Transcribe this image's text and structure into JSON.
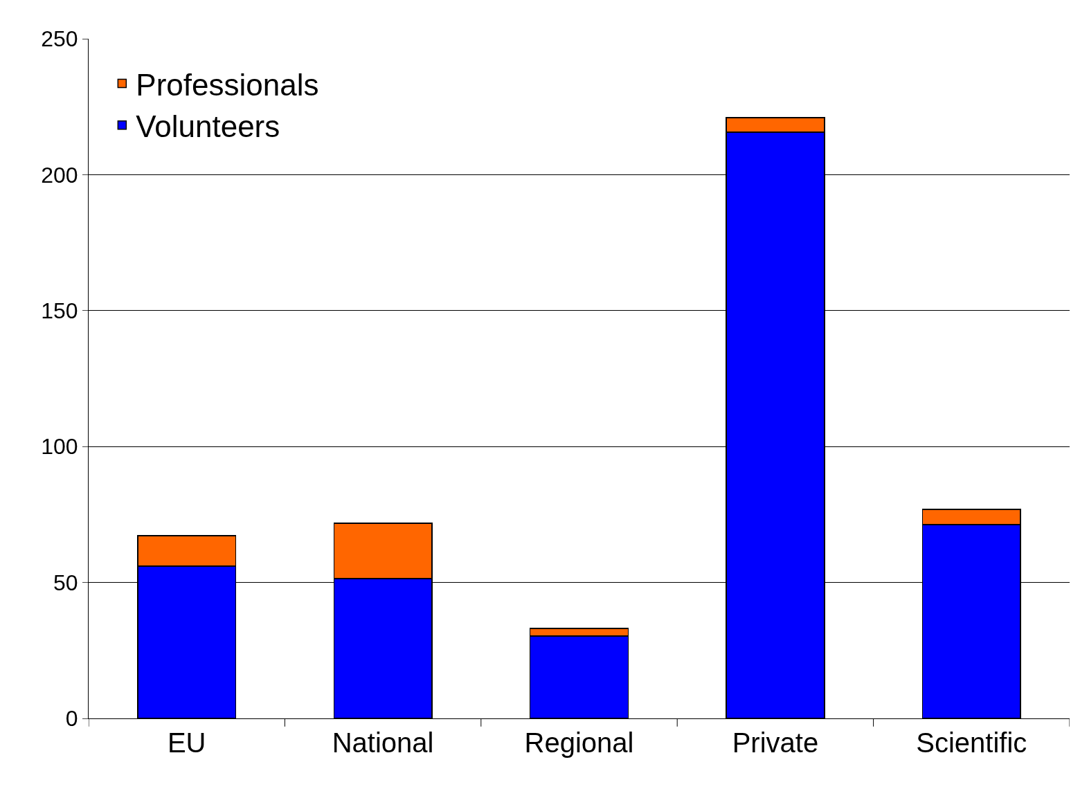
{
  "chart_data": {
    "type": "bar",
    "stacked": true,
    "categories": [
      "EU",
      "National",
      "Regional",
      "Private",
      "Scientific"
    ],
    "series": [
      {
        "name": "Volunteers",
        "color": "#0000ff",
        "values": [
          56,
          51.4,
          30.3,
          215.6,
          71.3
        ]
      },
      {
        "name": "Professionals",
        "color": "#ff6600",
        "values": [
          11.2,
          20.4,
          2.8,
          5.4,
          5.6
        ]
      }
    ],
    "ylim": [
      0,
      250
    ],
    "yticks": [
      0,
      50,
      100,
      150,
      200,
      250
    ],
    "grid": "y",
    "legend": "top left"
  }
}
